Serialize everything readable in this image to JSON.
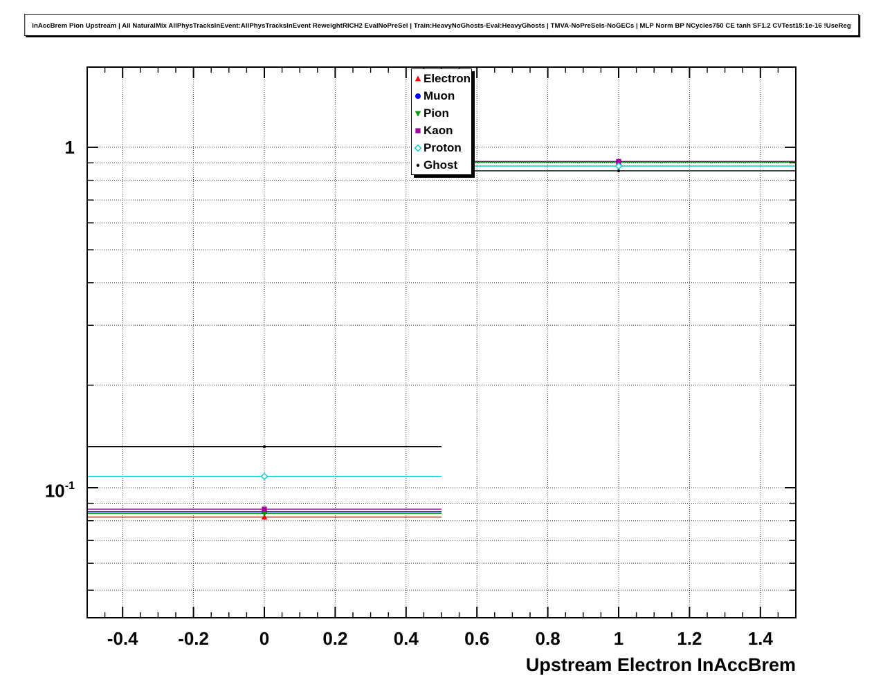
{
  "title": "InAccBrem Pion Upstream | All NaturalMix AllPhysTracksInEvent:AllPhysTracksInEvent ReweightRICH2 EvalNoPreSel | Train:HeavyNoGhosts-Eval:HeavyGhosts | TMVA-NoPreSels-NoGECs | MLP Norm BP NCycles750 CE tanh SF1.2 CVTest15:1e-16 !UseReg",
  "axes": {
    "x_label": "Upstream Electron InAccBrem",
    "y_tick_1": "1",
    "y_tick_01_base": "10",
    "y_tick_01_exp": "-1"
  },
  "legend": {
    "position": "top-right",
    "labels": [
      "Electron",
      "Muon",
      "Pion",
      "Kaon",
      "Proton",
      "Ghost"
    ]
  },
  "chart_data": {
    "type": "line",
    "style": "histogram-points-with-xerror-bars",
    "title": "InAccBrem Pion Upstream",
    "xlabel": "Upstream Electron InAccBrem",
    "ylabel": "",
    "y_scale": "log",
    "xlim": [
      -0.5,
      1.5
    ],
    "ylim": [
      0.0415,
      1.72
    ],
    "grid": true,
    "x_ticks": [
      -0.4,
      -0.2,
      0,
      0.2,
      0.4,
      0.6,
      0.8,
      1,
      1.2,
      1.4
    ],
    "x_tick_labels": [
      "-0.4",
      "-0.2",
      "0",
      "0.2",
      "0.4",
      "0.6",
      "0.8",
      "1",
      "1.2",
      "1.4"
    ],
    "x_minor_step": 0.05,
    "y_major_ticks": [
      1,
      0.1
    ],
    "y_major_tick_labels": [
      "1",
      "10^-1"
    ],
    "y_minor_ticks": [
      0.9,
      0.8,
      0.7,
      0.6,
      0.5,
      0.4,
      0.3,
      0.2,
      0.09,
      0.08,
      0.07,
      0.06,
      0.05
    ],
    "x_bins": [
      {
        "low": -0.5,
        "center": 0,
        "high": 0.5
      },
      {
        "low": 0.5,
        "center": 1,
        "high": 1.5
      }
    ],
    "series": [
      {
        "name": "Electron",
        "color": "#ff0000",
        "marker": "triangle-up",
        "values": [
          0.082,
          0.905
        ]
      },
      {
        "name": "Muon",
        "color": "#0000ff",
        "marker": "circle",
        "values": [
          0.085,
          0.906
        ]
      },
      {
        "name": "Pion",
        "color": "#009900",
        "marker": "triangle-down",
        "values": [
          0.084,
          0.904
        ]
      },
      {
        "name": "Kaon",
        "color": "#a000a0",
        "marker": "square",
        "values": [
          0.0865,
          0.909
        ]
      },
      {
        "name": "Proton",
        "color": "#00cccc",
        "marker": "diamond",
        "values": [
          0.108,
          0.881
        ]
      },
      {
        "name": "Ghost",
        "color": "#000000",
        "marker": "dot",
        "values": [
          0.132,
          0.853
        ]
      }
    ]
  }
}
